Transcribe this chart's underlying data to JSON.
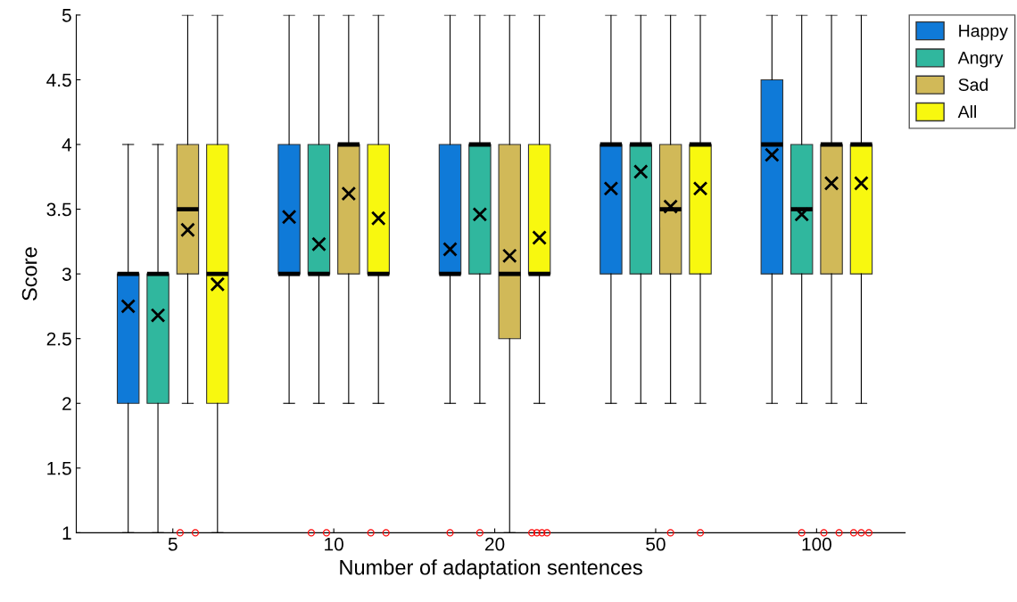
{
  "chart_data": {
    "type": "box",
    "xlabel": "Number of adaptation sentences",
    "ylabel": "Score",
    "categories": [
      "5",
      "10",
      "20",
      "50",
      "100"
    ],
    "ylim": [
      1,
      5
    ],
    "yticks": [
      1,
      1.5,
      2,
      2.5,
      3,
      3.5,
      4,
      4.5,
      5
    ],
    "grid": false,
    "legend": "top right",
    "marker": "circle",
    "series": [
      {
        "name": "Happy",
        "color": "#0f7ad8",
        "boxes": [
          {
            "low": 1,
            "q1": 2,
            "median": 3,
            "q3": 3,
            "high": 4,
            "mean": 2.75
          },
          {
            "low": 2,
            "q1": 3,
            "median": 3,
            "q3": 4,
            "high": 5,
            "mean": 3.44
          },
          {
            "low": 2,
            "q1": 3,
            "median": 3,
            "q3": 4,
            "high": 5,
            "mean": 3.19,
            "outliers": [
              1
            ]
          },
          {
            "low": 2,
            "q1": 3,
            "median": 4,
            "q3": 4,
            "high": 5,
            "mean": 3.66
          },
          {
            "low": 2,
            "q1": 3,
            "median": 4,
            "q3": 4.5,
            "high": 5,
            "mean": 3.92
          }
        ]
      },
      {
        "name": "Angry",
        "color": "#30b79e",
        "boxes": [
          {
            "low": 1,
            "q1": 2,
            "median": 3,
            "q3": 3,
            "high": 4,
            "mean": 2.68
          },
          {
            "low": 2,
            "q1": 3,
            "median": 3,
            "q3": 4,
            "high": 5,
            "mean": 3.23,
            "outliers": [
              1,
              1
            ]
          },
          {
            "low": 2,
            "q1": 3,
            "median": 4,
            "q3": 4,
            "high": 5,
            "mean": 3.46,
            "outliers": [
              1
            ]
          },
          {
            "low": 2,
            "q1": 3,
            "median": 4,
            "q3": 4,
            "high": 5,
            "mean": 3.79
          },
          {
            "low": 2,
            "q1": 3,
            "median": 3.5,
            "q3": 4,
            "high": 5,
            "mean": 3.46,
            "outliers": [
              1
            ]
          }
        ]
      },
      {
        "name": "Sad",
        "color": "#d1b958",
        "boxes": [
          {
            "low": 2,
            "q1": 3,
            "median": 3.5,
            "q3": 4,
            "high": 5,
            "mean": 3.34,
            "outliers": [
              1,
              1
            ]
          },
          {
            "low": 2,
            "q1": 3,
            "median": 4,
            "q3": 4,
            "high": 5,
            "mean": 3.62
          },
          {
            "low": 1,
            "q1": 2.5,
            "median": 3,
            "q3": 4,
            "high": 5,
            "mean": 3.14
          },
          {
            "low": 2,
            "q1": 3,
            "median": 3.5,
            "q3": 4,
            "high": 5,
            "mean": 3.52,
            "outliers": [
              1
            ]
          },
          {
            "low": 2,
            "q1": 3,
            "median": 4,
            "q3": 4,
            "high": 5,
            "mean": 3.7,
            "outliers": [
              1,
              1
            ]
          }
        ]
      },
      {
        "name": "All",
        "color": "#f8f80f",
        "boxes": [
          {
            "low": 1,
            "q1": 2,
            "median": 3,
            "q3": 4,
            "high": 5,
            "mean": 2.92
          },
          {
            "low": 2,
            "q1": 3,
            "median": 3,
            "q3": 4,
            "high": 5,
            "mean": 3.43,
            "outliers": [
              1,
              1
            ]
          },
          {
            "low": 2,
            "q1": 3,
            "median": 3,
            "q3": 4,
            "high": 5,
            "mean": 3.28,
            "outliers": [
              1,
              1,
              1,
              1
            ]
          },
          {
            "low": 2,
            "q1": 3,
            "median": 4,
            "q3": 4,
            "high": 5,
            "mean": 3.66,
            "outliers": [
              1
            ]
          },
          {
            "low": 2,
            "q1": 3,
            "median": 4,
            "q3": 4,
            "high": 5,
            "mean": 3.7,
            "outliers": [
              1,
              1,
              1
            ]
          }
        ]
      }
    ]
  }
}
